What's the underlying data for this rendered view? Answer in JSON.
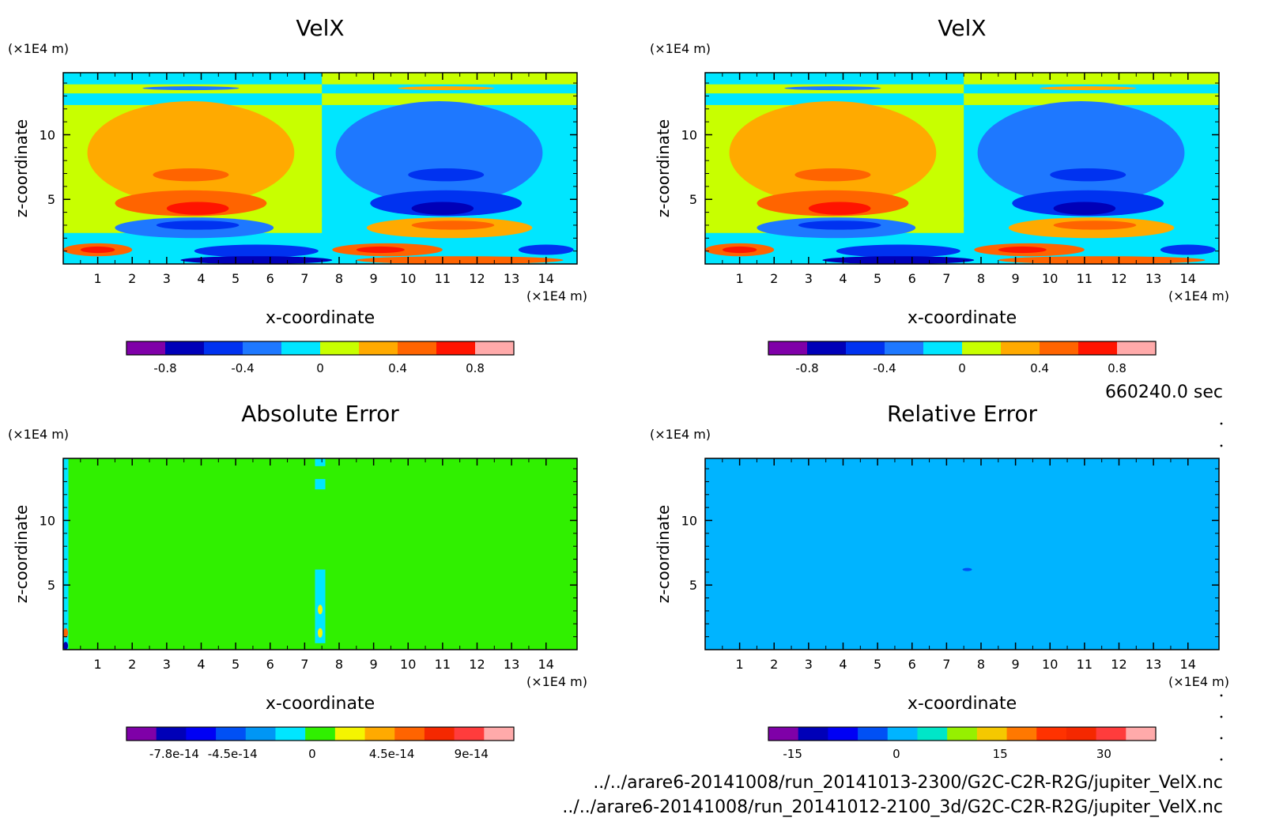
{
  "time_label": "660240.0 sec",
  "files": [
    "../../arare6-20141008/run_20141013-2300/G2C-C2R-R2G/jupiter_VelX.nc",
    "../../arare6-20141008/run_20141012-2100_3d/G2C-C2R-R2G/jupiter_VelX.nc"
  ],
  "chart_data": [
    {
      "type": "heatmap",
      "title": "VelX",
      "xlabel": "x-coordinate",
      "ylabel": "z-coordinate",
      "x_unit": "(×1E4 m)",
      "y_unit": "(×1E4 m)",
      "xlim": [
        0,
        14.9
      ],
      "ylim": [
        0,
        14.8
      ],
      "x_ticks": [
        "1",
        "2",
        "3",
        "4",
        "5",
        "6",
        "7",
        "8",
        "9",
        "10",
        "11",
        "12",
        "13",
        "14"
      ],
      "y_ticks": [
        "5",
        "10"
      ],
      "colorbar": {
        "colors": [
          "#7f00a8",
          "#0000b8",
          "#0032f0",
          "#1e78ff",
          "#00e6ff",
          "#c8ff00",
          "#ffaa00",
          "#ff6400",
          "#ff1400",
          "#ffaaaa"
        ],
        "tick_labels": [
          "-0.8",
          "-0.4",
          "0",
          "0.4",
          "0.8"
        ],
        "tick_values": [
          -0.8,
          -0.4,
          0,
          0.4,
          0.8
        ],
        "range": [
          -1.0,
          1.0
        ]
      },
      "background": "#c8ff00"
    },
    {
      "type": "heatmap",
      "title": "VelX",
      "xlabel": "x-coordinate",
      "ylabel": "z-coordinate",
      "x_unit": "(×1E4 m)",
      "y_unit": "(×1E4 m)",
      "xlim": [
        0,
        14.9
      ],
      "ylim": [
        0,
        14.8
      ],
      "x_ticks": [
        "1",
        "2",
        "3",
        "4",
        "5",
        "6",
        "7",
        "8",
        "9",
        "10",
        "11",
        "12",
        "13",
        "14"
      ],
      "y_ticks": [
        "5",
        "10"
      ],
      "colorbar": {
        "colors": [
          "#7f00a8",
          "#0000b8",
          "#0032f0",
          "#1e78ff",
          "#00e6ff",
          "#c8ff00",
          "#ffaa00",
          "#ff6400",
          "#ff1400",
          "#ffaaaa"
        ],
        "tick_labels": [
          "-0.8",
          "-0.4",
          "0",
          "0.4",
          "0.8"
        ],
        "tick_values": [
          -0.8,
          -0.4,
          0,
          0.4,
          0.8
        ],
        "range": [
          -1.0,
          1.0
        ]
      },
      "background": "#c8ff00"
    },
    {
      "type": "heatmap",
      "title": "Absolute Error",
      "xlabel": "x-coordinate",
      "ylabel": "z-coordinate",
      "x_unit": "(×1E4 m)",
      "y_unit": "(×1E4 m)",
      "xlim": [
        0,
        14.9
      ],
      "ylim": [
        0,
        14.8
      ],
      "x_ticks": [
        "1",
        "2",
        "3",
        "4",
        "5",
        "6",
        "7",
        "8",
        "9",
        "10",
        "11",
        "12",
        "13",
        "14"
      ],
      "y_ticks": [
        "5",
        "10"
      ],
      "colorbar": {
        "colors": [
          "#7f00a8",
          "#0000b8",
          "#0000f5",
          "#0050f5",
          "#0096f5",
          "#00e6ff",
          "#30f000",
          "#f5f500",
          "#ffaa00",
          "#ff6400",
          "#f52800",
          "#ff3c3c",
          "#ffaaaa"
        ],
        "tick_labels": [
          "-7.8e-14",
          "-4.5e-14",
          "0",
          "4.5e-14",
          "9e-14"
        ],
        "tick_values": [
          -7.8e-14,
          -4.5e-14,
          0,
          4.5e-14,
          9e-14
        ],
        "range": [
          -1.05e-13,
          1.14e-13
        ]
      },
      "background": "#30f000"
    },
    {
      "type": "heatmap",
      "title": "Relative Error",
      "xlabel": "x-coordinate",
      "ylabel": "z-coordinate",
      "x_unit": "(×1E4 m)",
      "y_unit": "(×1E4 m)",
      "xlim": [
        0,
        14.9
      ],
      "ylim": [
        0,
        14.8
      ],
      "x_ticks": [
        "1",
        "2",
        "3",
        "4",
        "5",
        "6",
        "7",
        "8",
        "9",
        "10",
        "11",
        "12",
        "13",
        "14"
      ],
      "y_ticks": [
        "5",
        "10"
      ],
      "colorbar": {
        "colors": [
          "#7f00a8",
          "#0000b8",
          "#0000f5",
          "#0050f5",
          "#00b4ff",
          "#00e6c8",
          "#96f000",
          "#f5c800",
          "#ff7800",
          "#ff3200",
          "#f52800",
          "#ff3c3c",
          "#ffaaaa"
        ],
        "tick_labels": [
          "-15",
          "0",
          "15",
          "30"
        ],
        "tick_values": [
          -15,
          0,
          15,
          30
        ],
        "range": [
          -18.5,
          37.5
        ]
      },
      "background": "#00b4ff"
    }
  ]
}
